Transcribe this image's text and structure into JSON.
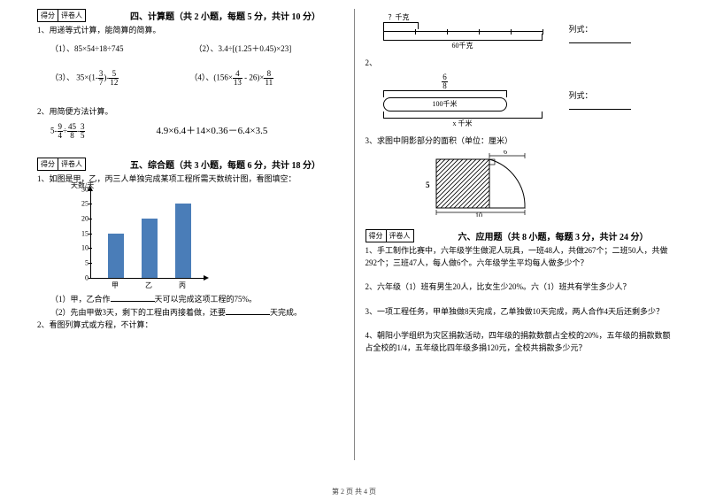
{
  "left": {
    "score_cells": [
      "得分",
      "评卷人"
    ],
    "section4": {
      "title": "四、计算题（共 2 小题，每题 5 分，共计 10 分）",
      "q1": "1、用递等式计算，能简算的简算。",
      "q1a": "（1）、85×54÷18÷745",
      "q1b": "（2）、3.4÷[(1.25＋0.45)×23]",
      "q1c_pre": "（3）、 35×(1-",
      "q1c_f1n": "3",
      "q1c_f1d": "7",
      "q1c_mid": ")-",
      "q1c_f2n": "5",
      "q1c_f2d": "12",
      "q1d_pre": "（4）、(156×",
      "q1d_f1n": "4",
      "q1d_f1d": "13",
      "q1d_mid": " - 26)×",
      "q1d_f2n": "8",
      "q1d_f2d": "11",
      "q2": "2、用简便方法计算。",
      "q2a_pre": "5-",
      "q2a_f1n": "9",
      "q2a_f1d": "4",
      "q2a_mid": "÷",
      "q2a_f2n": "45",
      "q2a_f2d": "8",
      "q2a_mid2": "-",
      "q2a_f3n": "3",
      "q2a_f3d": "5",
      "q2b": "4.9×6.4＋14×0.36－6.4×3.5"
    },
    "section5": {
      "title": "五、综合题（共 3 小题，每题 6 分，共计 18 分）",
      "q1": "1、如图是甲，乙，丙三人单独完成某项工程所需天数统计图，看图填空：",
      "chart": {
        "y_title": "天数/天",
        "y_ticks": [
          0,
          5,
          10,
          15,
          20,
          25,
          30
        ],
        "bars": [
          {
            "label": "甲",
            "value": 15,
            "color": "#4a7db8"
          },
          {
            "label": "乙",
            "value": 20,
            "color": "#4a7db8"
          },
          {
            "label": "丙",
            "value": 25,
            "color": "#4a7db8"
          }
        ],
        "y_max": 30
      },
      "q1_1": "（1）甲，乙合作______天可以完成这项工程的75%。",
      "q1_2": "（2）先由甲做3天，剩下的工程由丙接着做，还要______天完成。",
      "q2": "2、看图列算式或方程，不计算："
    }
  },
  "right": {
    "d1": {
      "top_label": "？千克",
      "bottom_label": "60千克",
      "side": "列式：",
      "ticks": 6
    },
    "q2n": "2、",
    "d2": {
      "top_n": "6",
      "top_d": "8",
      "mid_label": "100千米",
      "bottom_label": "x 千米",
      "side": "列式："
    },
    "q3": "3、求图中阴影部分的面积（单位：厘米）",
    "shape": {
      "w_label": "6",
      "h_label": "5",
      "base_label": "10"
    },
    "score_cells": [
      "得分",
      "评卷人"
    ],
    "section6": {
      "title": "六、应用题（共 8 小题，每题 3 分，共计 24 分）",
      "q1": "1、手工制作比赛中，六年级学生做泥人玩具，一班48人，共做267个；二班50人，共做292个；三班47人，每人做6个。六年级学生平均每人做多少个？",
      "q2": "2、六年级（1）班有男生20人，比女生少20%。六（1）班共有学生多少人？",
      "q3": "3、一项工程任务，甲单独做8天完成，乙单独做10天完成，两人合作4天后还剩多少？",
      "q4": "4、朝阳小学组织为灾区捐款活动，四年级的捐款数额占全校的20%，五年级的捐款数额占全校的1/4，五年级比四年级多捐120元，全校共捐款多少元？"
    }
  },
  "footer": "第 2 页 共 4 页"
}
